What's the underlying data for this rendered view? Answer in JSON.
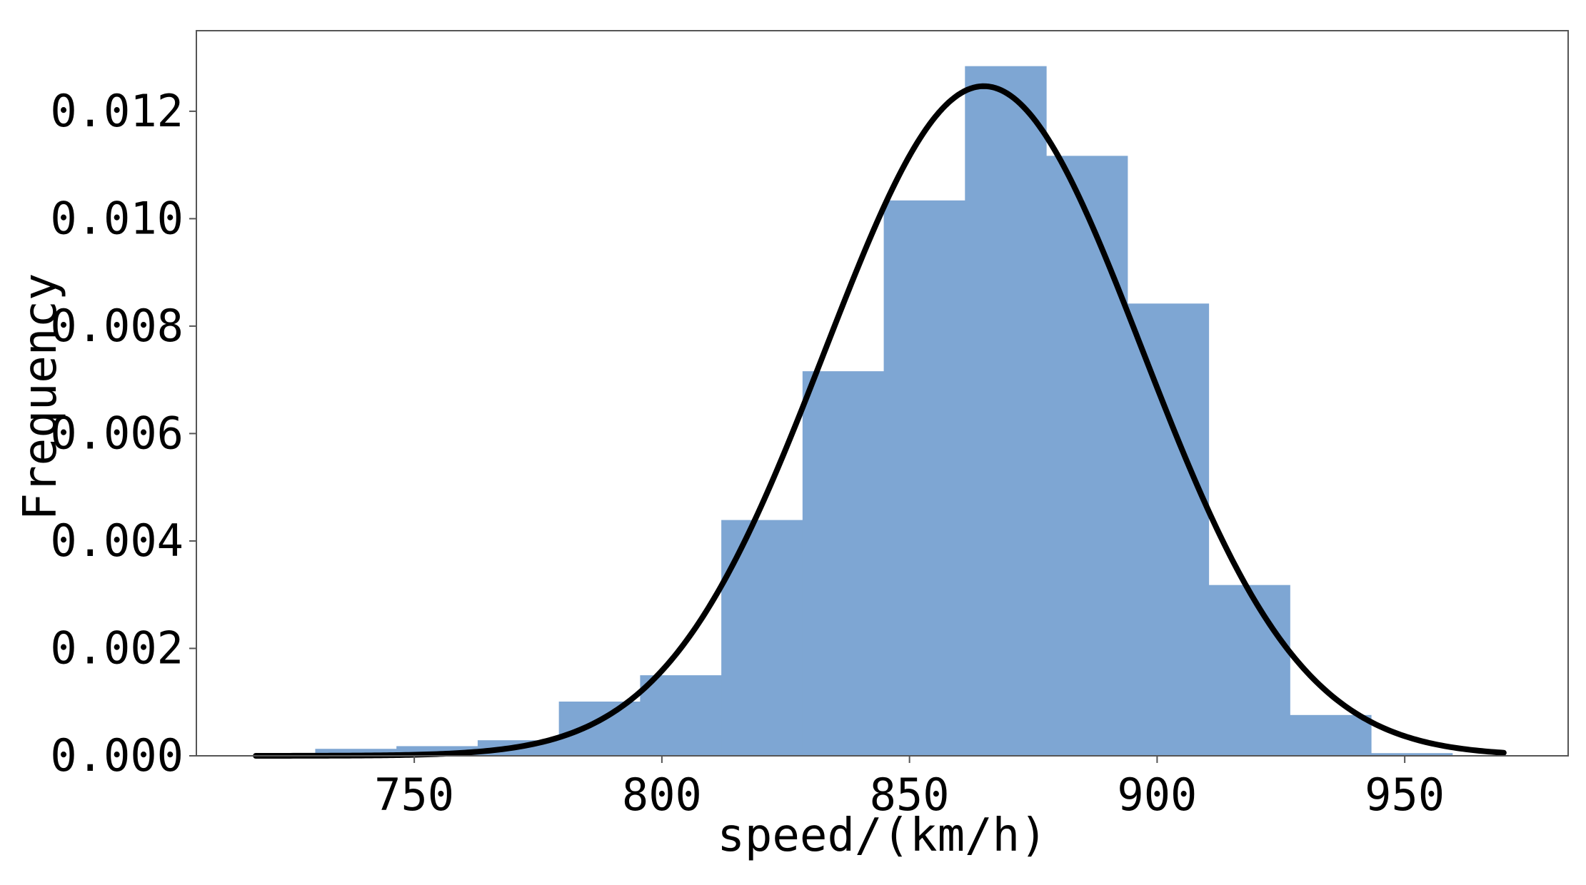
{
  "chart_data": {
    "type": "bar",
    "title": "",
    "xlabel": "speed/(km/h)",
    "ylabel": "Frequency",
    "xlim": [
      706,
      983
    ],
    "ylim": [
      0,
      0.0135
    ],
    "x_ticks": [
      750,
      800,
      850,
      900,
      950
    ],
    "x_tick_labels": [
      "750",
      "800",
      "850",
      "900",
      "950"
    ],
    "y_ticks": [
      0.0,
      0.002,
      0.004,
      0.006,
      0.008,
      0.01,
      0.012
    ],
    "y_tick_labels": [
      "0.000",
      "0.002",
      "0.004",
      "0.006",
      "0.008",
      "0.010",
      "0.012"
    ],
    "grid": false,
    "legend": "none",
    "histogram": {
      "bin_edges": [
        730,
        746.4,
        762.8,
        779.2,
        795.6,
        812.0,
        828.4,
        844.8,
        861.2,
        877.6,
        894.0,
        910.4,
        926.8,
        943.2,
        959.6
      ],
      "values": [
        0.00013,
        0.00018,
        0.00029,
        0.00101,
        0.0015,
        0.00439,
        0.00716,
        0.01034,
        0.01284,
        0.01117,
        0.00842,
        0.00318,
        0.00076,
        5e-05
      ],
      "color": "#7ea6d3"
    },
    "fit_curve": {
      "type": "normal-pdf",
      "mean": 865,
      "std": 32,
      "x_range": [
        718,
        970
      ],
      "color": "#000000"
    }
  }
}
